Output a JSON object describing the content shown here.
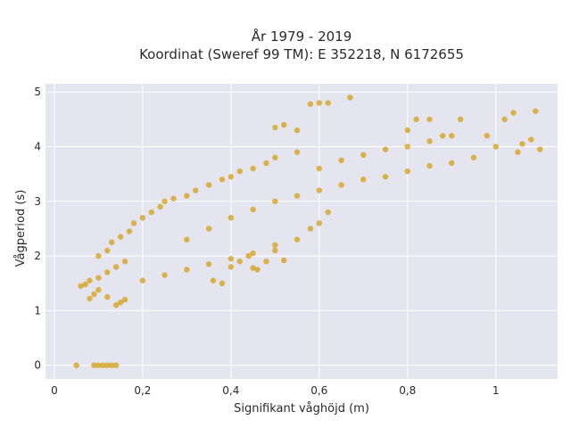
{
  "chart_data": {
    "type": "scatter",
    "title_line1": "År 1979 - 2019",
    "title_line2": "Koordinat (Sweref 99 TM): E 352218, N 6172655",
    "xlabel": "Signifikant våghöjd (m)",
    "ylabel": "Vågperiod (s)",
    "xlim": [
      -0.02,
      1.14
    ],
    "ylim": [
      -0.25,
      5.15
    ],
    "x_ticks": [
      0,
      0.2,
      0.4,
      0.6,
      0.8,
      1.0
    ],
    "x_tick_labels": [
      "0",
      "0,2",
      "0,4",
      "0,6",
      "0,8",
      "1"
    ],
    "y_ticks": [
      0,
      1,
      2,
      3,
      4,
      5
    ],
    "y_tick_labels": [
      "0",
      "1",
      "2",
      "3",
      "4",
      "5"
    ],
    "grid": true,
    "marker_color": "#D4A420",
    "plot_background": "#E5E5EF",
    "series": [
      {
        "points": [
          [
            0.05,
            0.0
          ],
          [
            0.09,
            0.0
          ],
          [
            0.1,
            0.0
          ],
          [
            0.11,
            0.0
          ],
          [
            0.12,
            0.0
          ],
          [
            0.13,
            0.0
          ],
          [
            0.14,
            0.0
          ],
          [
            0.08,
            1.22
          ],
          [
            0.09,
            1.3
          ],
          [
            0.1,
            1.38
          ],
          [
            0.12,
            1.25
          ],
          [
            0.14,
            1.1
          ],
          [
            0.15,
            1.15
          ],
          [
            0.16,
            1.2
          ],
          [
            0.06,
            1.45
          ],
          [
            0.07,
            1.48
          ],
          [
            0.08,
            1.55
          ],
          [
            0.1,
            1.6
          ],
          [
            0.12,
            1.7
          ],
          [
            0.14,
            1.8
          ],
          [
            0.16,
            1.9
          ],
          [
            0.1,
            2.0
          ],
          [
            0.12,
            2.1
          ],
          [
            0.13,
            2.25
          ],
          [
            0.15,
            2.35
          ],
          [
            0.17,
            2.45
          ],
          [
            0.18,
            2.6
          ],
          [
            0.2,
            2.7
          ],
          [
            0.22,
            2.8
          ],
          [
            0.24,
            2.9
          ],
          [
            0.25,
            3.0
          ],
          [
            0.27,
            3.05
          ],
          [
            0.3,
            3.1
          ],
          [
            0.32,
            3.2
          ],
          [
            0.35,
            3.3
          ],
          [
            0.38,
            3.4
          ],
          [
            0.4,
            3.45
          ],
          [
            0.42,
            3.55
          ],
          [
            0.45,
            3.6
          ],
          [
            0.48,
            3.7
          ],
          [
            0.5,
            3.8
          ],
          [
            0.55,
            3.9
          ],
          [
            0.2,
            1.55
          ],
          [
            0.25,
            1.65
          ],
          [
            0.3,
            1.75
          ],
          [
            0.35,
            1.85
          ],
          [
            0.4,
            1.95
          ],
          [
            0.45,
            2.05
          ],
          [
            0.5,
            2.2
          ],
          [
            0.3,
            2.3
          ],
          [
            0.35,
            2.5
          ],
          [
            0.4,
            2.7
          ],
          [
            0.45,
            2.85
          ],
          [
            0.5,
            3.0
          ],
          [
            0.55,
            3.1
          ],
          [
            0.6,
            3.2
          ],
          [
            0.65,
            3.3
          ],
          [
            0.7,
            3.4
          ],
          [
            0.75,
            3.45
          ],
          [
            0.8,
            3.55
          ],
          [
            0.85,
            3.65
          ],
          [
            0.9,
            3.7
          ],
          [
            0.95,
            3.8
          ],
          [
            0.6,
            3.6
          ],
          [
            0.65,
            3.75
          ],
          [
            0.7,
            3.85
          ],
          [
            0.75,
            3.95
          ],
          [
            0.8,
            4.0
          ],
          [
            0.85,
            4.1
          ],
          [
            0.9,
            4.2
          ],
          [
            0.58,
            4.78
          ],
          [
            0.6,
            4.8
          ],
          [
            0.62,
            4.8
          ],
          [
            0.67,
            4.9
          ],
          [
            0.55,
            4.3
          ],
          [
            0.52,
            4.4
          ],
          [
            0.5,
            4.35
          ],
          [
            0.82,
            4.5
          ],
          [
            0.85,
            4.5
          ],
          [
            0.8,
            4.3
          ],
          [
            0.92,
            4.5
          ],
          [
            0.88,
            4.2
          ],
          [
            0.98,
            4.2
          ],
          [
            1.0,
            4.0
          ],
          [
            1.02,
            4.5
          ],
          [
            1.04,
            4.62
          ],
          [
            1.09,
            4.65
          ],
          [
            1.06,
            4.05
          ],
          [
            1.08,
            4.13
          ],
          [
            1.1,
            3.95
          ],
          [
            1.05,
            3.9
          ],
          [
            0.4,
            1.8
          ],
          [
            0.42,
            1.9
          ],
          [
            0.44,
            2.0
          ],
          [
            0.46,
            1.75
          ],
          [
            0.48,
            1.9
          ],
          [
            0.52,
            1.92
          ],
          [
            0.5,
            2.1
          ],
          [
            0.36,
            1.55
          ],
          [
            0.38,
            1.5
          ],
          [
            0.45,
            1.78
          ],
          [
            0.55,
            2.3
          ],
          [
            0.58,
            2.5
          ],
          [
            0.6,
            2.6
          ],
          [
            0.62,
            2.8
          ]
        ]
      }
    ]
  }
}
